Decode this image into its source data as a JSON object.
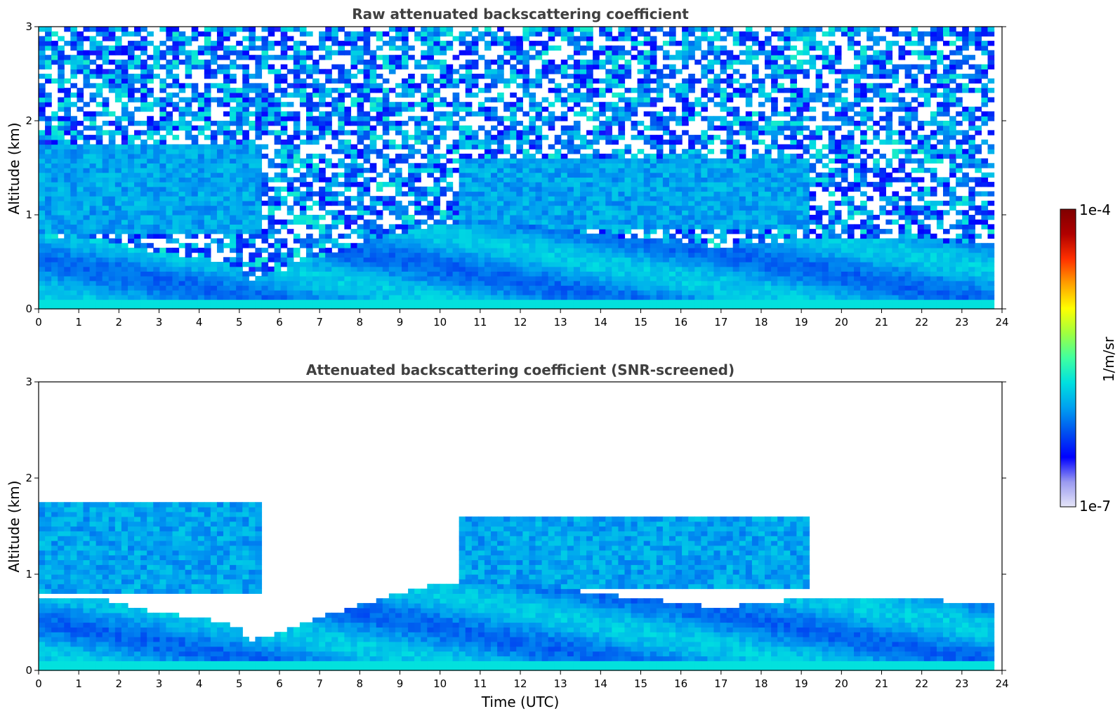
{
  "chart_data": {
    "figure_type": "heatmap",
    "colorbar": {
      "label": "1/m/sr",
      "max_label": "1e-4",
      "min_label": "1e-7",
      "range": [
        1e-07,
        0.0001
      ],
      "scale": "log",
      "colormap": [
        "#e6e6f8",
        "#9a9af0",
        "#0000ff",
        "#0050f0",
        "#00a0f0",
        "#00e0e0",
        "#40ffa0",
        "#a0ff40",
        "#ffff00",
        "#ffa000",
        "#ff3000",
        "#b00000",
        "#7f0000"
      ]
    },
    "panels": [
      {
        "type": "heatmap",
        "title": "Raw attenuated backscattering coefficient",
        "xlabel": "",
        "ylabel": "Altitude (km)",
        "xlim": [
          0,
          24
        ],
        "ylim": [
          0,
          3
        ],
        "xticks": [
          "0",
          "1",
          "2",
          "3",
          "4",
          "5",
          "6",
          "7",
          "8",
          "9",
          "10",
          "11",
          "12",
          "13",
          "14",
          "15",
          "16",
          "17",
          "18",
          "19",
          "20",
          "21",
          "22",
          "23",
          "24"
        ],
        "yticks": [
          "0",
          "1",
          "2",
          "3"
        ],
        "data_end_time": 23.8,
        "layer_top_km": {
          "time": [
            0,
            1.5,
            3,
            4,
            5,
            5.3,
            7,
            9,
            10,
            11,
            12,
            13,
            14,
            15,
            16,
            17,
            18,
            19,
            20,
            21,
            22,
            23,
            23.8
          ],
          "value": [
            0.75,
            0.75,
            0.6,
            0.55,
            0.45,
            0.3,
            0.55,
            0.8,
            0.9,
            0.95,
            0.9,
            0.85,
            0.8,
            0.75,
            0.7,
            0.65,
            0.7,
            0.75,
            0.75,
            0.75,
            0.75,
            0.7,
            0.7
          ]
        },
        "elevated_aerosol_km": [
          {
            "t0": 0,
            "t1": 5.5,
            "bottom": 0.8,
            "top": 1.75
          },
          {
            "t0": 10.5,
            "t1": 19.2,
            "bottom": 0.85,
            "top": 1.6
          }
        ]
      },
      {
        "type": "heatmap",
        "title": "Attenuated backscattering coefficient (SNR-screened)",
        "xlabel": "Time (UTC)",
        "ylabel": "Altitude (km)",
        "xlim": [
          0,
          24
        ],
        "ylim": [
          0,
          3
        ],
        "xticks": [
          "0",
          "1",
          "2",
          "3",
          "4",
          "5",
          "6",
          "7",
          "8",
          "9",
          "10",
          "11",
          "12",
          "13",
          "14",
          "15",
          "16",
          "17",
          "18",
          "19",
          "20",
          "21",
          "22",
          "23",
          "24"
        ],
        "yticks": [
          "0",
          "1",
          "2",
          "3"
        ],
        "data_end_time": 23.8,
        "layer_top_km": {
          "time": [
            0,
            1.5,
            3,
            4,
            5,
            5.3,
            7,
            9,
            10,
            11,
            12,
            13,
            14,
            15,
            16,
            17,
            18,
            19,
            20,
            21,
            22,
            23,
            23.8
          ],
          "value": [
            0.75,
            0.75,
            0.6,
            0.55,
            0.45,
            0.3,
            0.55,
            0.8,
            0.9,
            0.95,
            0.9,
            0.85,
            0.8,
            0.75,
            0.7,
            0.65,
            0.7,
            0.75,
            0.75,
            0.75,
            0.75,
            0.7,
            0.7
          ]
        },
        "elevated_aerosol_km": [
          {
            "t0": 0,
            "t1": 5.5,
            "bottom": 0.8,
            "top": 1.75
          },
          {
            "t0": 10.5,
            "t1": 19.2,
            "bottom": 0.85,
            "top": 1.6
          }
        ]
      }
    ]
  }
}
